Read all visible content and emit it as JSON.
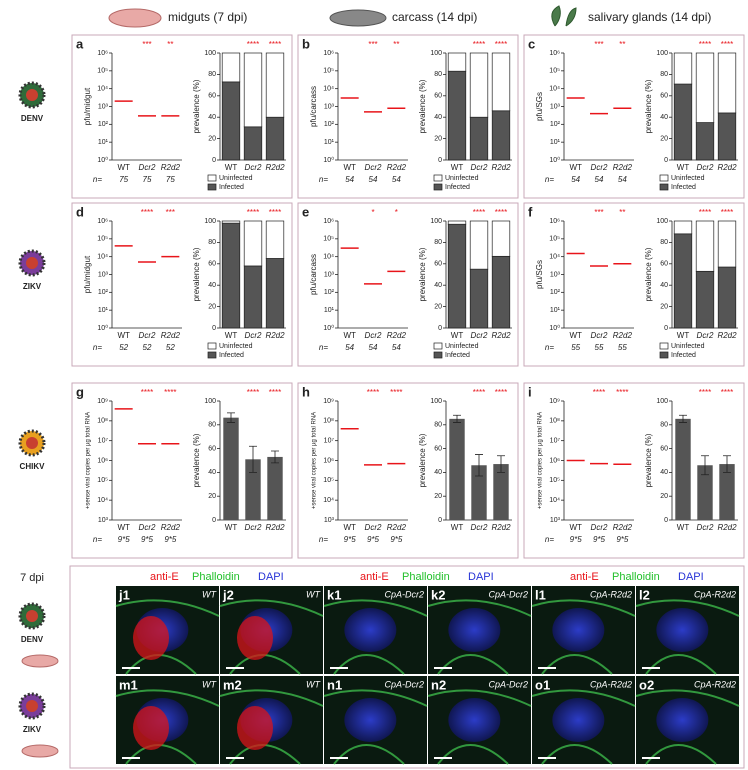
{
  "header": {
    "columns": [
      "midguts (7 dpi)",
      "carcass (14 dpi)",
      "salivary glands (14 dpi)"
    ],
    "rows": [
      "DENV",
      "ZIKV",
      "CHIKV"
    ]
  },
  "chart_data": [
    {
      "type": "strip",
      "panel": "a",
      "ylabel": "pfu/midgut",
      "categories": [
        "WT",
        "Dcr2",
        "R2d2"
      ],
      "medians": [
        2000,
        300,
        300
      ],
      "significance": [
        null,
        "***",
        "**"
      ],
      "n_label": "n=",
      "n": [
        75,
        75,
        75
      ],
      "log": true,
      "median_color": "#e8141a",
      "ylim": [
        1,
        1000000
      ],
      "yticks": [
        {
          "value": 1,
          "label": "10⁰"
        },
        {
          "value": 10,
          "label": "10¹"
        },
        {
          "value": 100,
          "label": "10²"
        },
        {
          "value": 1000,
          "label": "10³"
        },
        {
          "value": 10000,
          "label": "10⁴"
        },
        {
          "value": 100000,
          "label": "10⁵"
        },
        {
          "value": 1000000,
          "label": "10⁶"
        }
      ]
    },
    {
      "type": "bar",
      "ylabel": "prevalence (%)",
      "categories": [
        "WT",
        "Dcr2",
        "R2d2"
      ],
      "stacked": true,
      "series": [
        {
          "name": "Infected",
          "color": "#555555",
          "values": [
            73,
            31,
            40
          ]
        },
        {
          "name": "Uninfected",
          "color": "#ffffff",
          "values": [
            27,
            69,
            60
          ]
        }
      ],
      "significance": [
        null,
        "****",
        "****"
      ],
      "ylim": [
        0,
        100
      ],
      "yticks": [
        0,
        20,
        40,
        60,
        80,
        100
      ]
    },
    {
      "type": "strip",
      "panel": "b",
      "ylabel": "pfu/carcass",
      "categories": [
        "WT",
        "Dcr2",
        "R2d2"
      ],
      "medians": [
        3000,
        500,
        800
      ],
      "significance": [
        null,
        "***",
        "**"
      ],
      "n_label": "n=",
      "n": [
        54,
        54,
        54
      ],
      "log": true,
      "median_color": "#e8141a",
      "ylim": [
        1,
        1000000
      ],
      "yticks": [
        {
          "value": 1,
          "label": "10⁰"
        },
        {
          "value": 10,
          "label": "10¹"
        },
        {
          "value": 100,
          "label": "10²"
        },
        {
          "value": 1000,
          "label": "10³"
        },
        {
          "value": 10000,
          "label": "10⁴"
        },
        {
          "value": 100000,
          "label": "10⁵"
        },
        {
          "value": 1000000,
          "label": "10⁶"
        }
      ]
    },
    {
      "type": "bar",
      "ylabel": "prevalence (%)",
      "categories": [
        "WT",
        "Dcr2",
        "R2d2"
      ],
      "stacked": true,
      "series": [
        {
          "name": "Infected",
          "color": "#555555",
          "values": [
            83,
            40,
            46
          ]
        },
        {
          "name": "Uninfected",
          "color": "#ffffff",
          "values": [
            17,
            60,
            54
          ]
        }
      ],
      "significance": [
        null,
        "****",
        "****"
      ],
      "ylim": [
        0,
        100
      ],
      "yticks": [
        0,
        20,
        40,
        60,
        80,
        100
      ]
    },
    {
      "type": "strip",
      "panel": "c",
      "ylabel": "pfu/SGs",
      "categories": [
        "WT",
        "Dcr2",
        "R2d2"
      ],
      "medians": [
        3000,
        400,
        800
      ],
      "significance": [
        null,
        "***",
        "**"
      ],
      "n_label": "n=",
      "n": [
        54,
        54,
        54
      ],
      "log": true,
      "median_color": "#e8141a",
      "ylim": [
        1,
        1000000
      ],
      "yticks": [
        {
          "value": 1,
          "label": "10⁰"
        },
        {
          "value": 10,
          "label": "10¹"
        },
        {
          "value": 100,
          "label": "10²"
        },
        {
          "value": 1000,
          "label": "10³"
        },
        {
          "value": 10000,
          "label": "10⁴"
        },
        {
          "value": 100000,
          "label": "10⁵"
        },
        {
          "value": 1000000,
          "label": "10⁶"
        }
      ]
    },
    {
      "type": "bar",
      "ylabel": "prevalence (%)",
      "categories": [
        "WT",
        "Dcr2",
        "R2d2"
      ],
      "stacked": true,
      "series": [
        {
          "name": "Infected",
          "color": "#555555",
          "values": [
            71,
            35,
            44
          ]
        },
        {
          "name": "Uninfected",
          "color": "#ffffff",
          "values": [
            29,
            65,
            56
          ]
        }
      ],
      "significance": [
        null,
        "****",
        "****"
      ],
      "ylim": [
        0,
        100
      ],
      "yticks": [
        0,
        20,
        40,
        60,
        80,
        100
      ]
    },
    {
      "type": "strip",
      "panel": "d",
      "ylabel": "pfu/midgut",
      "categories": [
        "WT",
        "Dcr2",
        "R2d2"
      ],
      "medians": [
        40000,
        5000,
        10000
      ],
      "significance": [
        null,
        "****",
        "***"
      ],
      "n_label": "n=",
      "n": [
        52,
        52,
        52
      ],
      "log": true,
      "median_color": "#e8141a",
      "ylim": [
        1,
        1000000
      ],
      "yticks": [
        {
          "value": 1,
          "label": "10⁰"
        },
        {
          "value": 10,
          "label": "10¹"
        },
        {
          "value": 100,
          "label": "10²"
        },
        {
          "value": 1000,
          "label": "10³"
        },
        {
          "value": 10000,
          "label": "10⁴"
        },
        {
          "value": 100000,
          "label": "10⁵"
        },
        {
          "value": 1000000,
          "label": "10⁶"
        }
      ]
    },
    {
      "type": "bar",
      "ylabel": "prevalence (%)",
      "categories": [
        "WT",
        "Dcr2",
        "R2d2"
      ],
      "stacked": true,
      "series": [
        {
          "name": "Infected",
          "color": "#555555",
          "values": [
            98,
            58,
            65
          ]
        },
        {
          "name": "Uninfected",
          "color": "#ffffff",
          "values": [
            2,
            42,
            35
          ]
        }
      ],
      "significance": [
        null,
        "****",
        "****"
      ],
      "ylim": [
        0,
        100
      ],
      "yticks": [
        0,
        20,
        40,
        60,
        80,
        100
      ]
    },
    {
      "type": "strip",
      "panel": "e",
      "ylabel": "pfu/carcass",
      "categories": [
        "WT",
        "Dcr2",
        "R2d2"
      ],
      "medians": [
        30000,
        300,
        1500
      ],
      "significance": [
        null,
        "*",
        "*"
      ],
      "n_label": "n=",
      "n": [
        54,
        54,
        54
      ],
      "log": true,
      "median_color": "#e8141a",
      "ylim": [
        1,
        1000000
      ],
      "yticks": [
        {
          "value": 1,
          "label": "10⁰"
        },
        {
          "value": 10,
          "label": "10¹"
        },
        {
          "value": 100,
          "label": "10²"
        },
        {
          "value": 1000,
          "label": "10³"
        },
        {
          "value": 10000,
          "label": "10⁴"
        },
        {
          "value": 100000,
          "label": "10⁵"
        },
        {
          "value": 1000000,
          "label": "10⁶"
        }
      ]
    },
    {
      "type": "bar",
      "ylabel": "prevalence (%)",
      "categories": [
        "WT",
        "Dcr2",
        "R2d2"
      ],
      "stacked": true,
      "series": [
        {
          "name": "Infected",
          "color": "#555555",
          "values": [
            97,
            55,
            67
          ]
        },
        {
          "name": "Uninfected",
          "color": "#ffffff",
          "values": [
            3,
            45,
            33
          ]
        }
      ],
      "significance": [
        null,
        "****",
        "****"
      ],
      "ylim": [
        0,
        100
      ],
      "yticks": [
        0,
        20,
        40,
        60,
        80,
        100
      ]
    },
    {
      "type": "strip",
      "panel": "f",
      "ylabel": "pfu/SGs",
      "categories": [
        "WT",
        "Dcr2",
        "R2d2"
      ],
      "medians": [
        15000,
        3000,
        4000
      ],
      "significance": [
        null,
        "***",
        "**"
      ],
      "n_label": "n=",
      "n": [
        55,
        55,
        55
      ],
      "log": true,
      "median_color": "#e8141a",
      "ylim": [
        1,
        1000000
      ],
      "yticks": [
        {
          "value": 1,
          "label": "10⁰"
        },
        {
          "value": 10,
          "label": "10¹"
        },
        {
          "value": 100,
          "label": "10²"
        },
        {
          "value": 1000,
          "label": "10³"
        },
        {
          "value": 10000,
          "label": "10⁴"
        },
        {
          "value": 100000,
          "label": "10⁵"
        },
        {
          "value": 1000000,
          "label": "10⁶"
        }
      ]
    },
    {
      "type": "bar",
      "ylabel": "prevalence (%)",
      "categories": [
        "WT",
        "Dcr2",
        "R2d2"
      ],
      "stacked": true,
      "series": [
        {
          "name": "Infected",
          "color": "#555555",
          "values": [
            88,
            53,
            57
          ]
        },
        {
          "name": "Uninfected",
          "color": "#ffffff",
          "values": [
            12,
            47,
            43
          ]
        }
      ],
      "significance": [
        null,
        "****",
        "****"
      ],
      "ylim": [
        0,
        100
      ],
      "yticks": [
        0,
        20,
        40,
        60,
        80,
        100
      ]
    },
    {
      "type": "strip",
      "panel": "g",
      "ylabel": "+sense viral copies per µg total RNA",
      "categories": [
        "WT",
        "Dcr2",
        "R2d2"
      ],
      "medians": [
        400000000,
        7000000,
        7000000
      ],
      "significance": [
        null,
        "****",
        "****"
      ],
      "n_label": "n=",
      "n": [
        "9*5",
        "9*5",
        "9*5"
      ],
      "log": true,
      "median_color": "#e8141a",
      "ylim": [
        1000,
        1000000000
      ],
      "yticks": [
        {
          "value": 1000,
          "label": "10³"
        },
        {
          "value": 10000,
          "label": "10⁴"
        },
        {
          "value": 100000,
          "label": "10⁵"
        },
        {
          "value": 1000000,
          "label": "10⁶"
        },
        {
          "value": 10000000,
          "label": "10⁷"
        },
        {
          "value": 100000000,
          "label": "10⁸"
        },
        {
          "value": 1000000000,
          "label": "10⁹"
        }
      ]
    },
    {
      "type": "bar",
      "ylabel": "prevalence (%)",
      "categories": [
        "WT",
        "Dcr2",
        "R2d2"
      ],
      "values": [
        86,
        51,
        53
      ],
      "errors": [
        4,
        11,
        5
      ],
      "color": "#555555",
      "significance": [
        null,
        "****",
        "****"
      ],
      "ylim": [
        0,
        100
      ],
      "yticks": [
        0,
        20,
        40,
        60,
        80,
        100
      ]
    },
    {
      "type": "strip",
      "panel": "h",
      "ylabel": "+sense viral copies per µg total RNA",
      "categories": [
        "WT",
        "Dcr2",
        "R2d2"
      ],
      "medians": [
        40000000,
        600000,
        700000
      ],
      "significance": [
        null,
        "****",
        "****"
      ],
      "n_label": "n=",
      "n": [
        "9*5",
        "9*5",
        "9*5"
      ],
      "log": true,
      "median_color": "#e8141a",
      "ylim": [
        1000,
        1000000000
      ],
      "yticks": [
        {
          "value": 1000,
          "label": "10³"
        },
        {
          "value": 10000,
          "label": "10⁴"
        },
        {
          "value": 100000,
          "label": "10⁵"
        },
        {
          "value": 1000000,
          "label": "10⁶"
        },
        {
          "value": 10000000,
          "label": "10⁷"
        },
        {
          "value": 100000000,
          "label": "10⁸"
        },
        {
          "value": 1000000000,
          "label": "10⁹"
        }
      ]
    },
    {
      "type": "bar",
      "ylabel": "prevalence (%)",
      "categories": [
        "WT",
        "Dcr2",
        "R2d2"
      ],
      "values": [
        85,
        46,
        47
      ],
      "errors": [
        3,
        9,
        7
      ],
      "color": "#555555",
      "significance": [
        null,
        "****",
        "****"
      ],
      "ylim": [
        0,
        100
      ],
      "yticks": [
        0,
        20,
        40,
        60,
        80,
        100
      ]
    },
    {
      "type": "strip",
      "panel": "i",
      "ylabel": "+sense viral copies per µg total RNA",
      "categories": [
        "WT",
        "Dcr2",
        "R2d2"
      ],
      "medians": [
        1000000,
        700000,
        650000
      ],
      "significance": [
        null,
        "****",
        "****"
      ],
      "n_label": "n=",
      "n": [
        "9*5",
        "9*5",
        "9*5"
      ],
      "log": true,
      "median_color": "#e8141a",
      "ylim": [
        1000,
        1000000000
      ],
      "yticks": [
        {
          "value": 1000,
          "label": "10³"
        },
        {
          "value": 10000,
          "label": "10⁴"
        },
        {
          "value": 100000,
          "label": "10⁵"
        },
        {
          "value": 1000000,
          "label": "10⁶"
        },
        {
          "value": 10000000,
          "label": "10⁷"
        },
        {
          "value": 100000000,
          "label": "10⁸"
        },
        {
          "value": 1000000000,
          "label": "10⁹"
        }
      ]
    },
    {
      "type": "bar",
      "ylabel": "prevalence (%)",
      "categories": [
        "WT",
        "Dcr2",
        "R2d2"
      ],
      "values": [
        85,
        46,
        47
      ],
      "errors": [
        3,
        8,
        7
      ],
      "color": "#555555",
      "significance": [
        null,
        "****",
        "****"
      ],
      "ylim": [
        0,
        100
      ],
      "yticks": [
        0,
        20,
        40,
        60,
        80,
        100
      ]
    }
  ],
  "images": {
    "time": "7 dpi",
    "rows": [
      "DENV",
      "ZIKV"
    ],
    "stains": [
      [
        "anti-E",
        "Phalloidin",
        "DAPI"
      ],
      [
        "anti-E",
        "Phalloidin",
        "DAPI"
      ],
      [
        "anti-E",
        "Phalloidin",
        "DAPI"
      ]
    ],
    "panels": [
      [
        "j1",
        "WT"
      ],
      [
        "j2",
        "WT"
      ],
      [
        "k1",
        "CpA-Dcr2"
      ],
      [
        "k2",
        "CpA-Dcr2"
      ],
      [
        "l1",
        "CpA-R2d2"
      ],
      [
        "l2",
        "CpA-R2d2"
      ],
      [
        "m1",
        "WT"
      ],
      [
        "m2",
        "WT"
      ],
      [
        "n1",
        "CpA-Dcr2"
      ],
      [
        "n2",
        "CpA-Dcr2"
      ],
      [
        "o1",
        "CpA-R2d2"
      ],
      [
        "o2",
        "CpA-R2d2"
      ]
    ]
  }
}
